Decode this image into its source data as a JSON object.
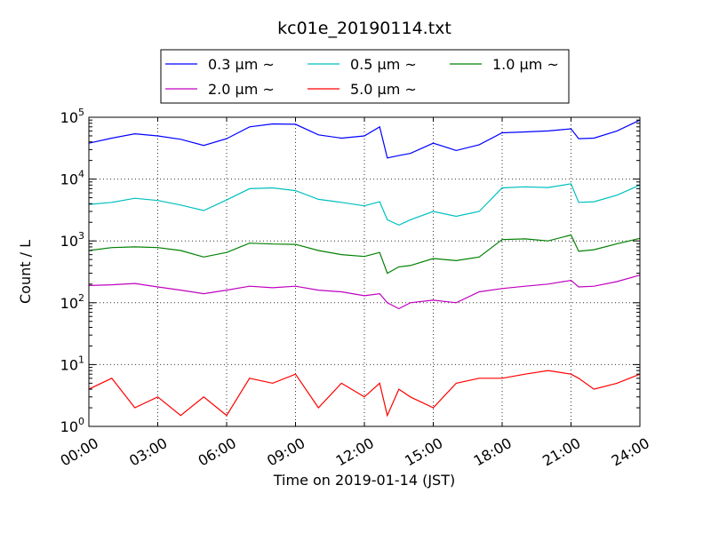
{
  "chart_data": {
    "type": "line",
    "title": "kc01e_20190114.txt",
    "xlabel": "Time on 2019-01-14 (JST)",
    "ylabel": "Count / L",
    "yscale": "log",
    "ylim": [
      1,
      100000
    ],
    "xlim": [
      "00:00",
      "24:00"
    ],
    "grid": true,
    "legend_position": "top",
    "x_tick_labels": [
      "00:00",
      "03:00",
      "06:00",
      "09:00",
      "12:00",
      "15:00",
      "18:00",
      "21:00",
      "24:00"
    ],
    "y_tick_labels": [
      {
        "base": "10",
        "exp": "0"
      },
      {
        "base": "10",
        "exp": "1"
      },
      {
        "base": "10",
        "exp": "2"
      },
      {
        "base": "10",
        "exp": "3"
      },
      {
        "base": "10",
        "exp": "4"
      },
      {
        "base": "10",
        "exp": "5"
      }
    ],
    "x": [
      "00:00",
      "01:00",
      "02:00",
      "03:00",
      "04:00",
      "05:00",
      "06:00",
      "07:00",
      "08:00",
      "09:00",
      "10:00",
      "11:00",
      "12:00",
      "12:40",
      "13:00",
      "13:30",
      "14:00",
      "15:00",
      "16:00",
      "17:00",
      "18:00",
      "19:00",
      "20:00",
      "21:00",
      "21:20",
      "22:00",
      "23:00",
      "24:00"
    ],
    "series": [
      {
        "name": "0.3 µm ~",
        "color": "#0000ff",
        "values": [
          38000,
          46000,
          54000,
          50000,
          44000,
          35000,
          45000,
          70000,
          78000,
          77000,
          52000,
          46000,
          50000,
          70000,
          22000,
          24000,
          26000,
          38000,
          29000,
          36000,
          56000,
          58000,
          60000,
          65000,
          45000,
          46000,
          60000,
          90000
        ]
      },
      {
        "name": "0.5 µm ~",
        "color": "#00bfbf",
        "values": [
          3900,
          4200,
          4900,
          4500,
          3800,
          3100,
          4600,
          7000,
          7200,
          6500,
          4700,
          4200,
          3700,
          4300,
          2200,
          1800,
          2200,
          3000,
          2500,
          3000,
          7200,
          7500,
          7300,
          8400,
          4200,
          4300,
          5500,
          8000
        ]
      },
      {
        "name": "1.0 µm ~",
        "color": "#008000",
        "values": [
          700,
          780,
          800,
          780,
          700,
          550,
          650,
          920,
          890,
          880,
          700,
          600,
          560,
          650,
          300,
          380,
          400,
          520,
          480,
          550,
          1050,
          1080,
          1000,
          1250,
          680,
          720,
          900,
          1100
        ]
      },
      {
        "name": "2.0 µm ~",
        "color": "#bf00bf",
        "values": [
          190,
          195,
          205,
          180,
          160,
          140,
          160,
          185,
          175,
          185,
          160,
          150,
          130,
          140,
          100,
          80,
          100,
          110,
          100,
          150,
          170,
          185,
          200,
          230,
          180,
          185,
          220,
          280
        ]
      },
      {
        "name": "5.0 µm ~",
        "color": "#ff0000",
        "values": [
          4,
          6,
          2,
          3,
          1.5,
          3,
          1.5,
          6,
          5,
          7,
          2,
          5,
          3,
          5,
          1.5,
          4,
          3,
          2,
          5,
          6,
          6,
          7,
          8,
          7,
          6,
          4,
          5,
          7
        ]
      }
    ]
  }
}
